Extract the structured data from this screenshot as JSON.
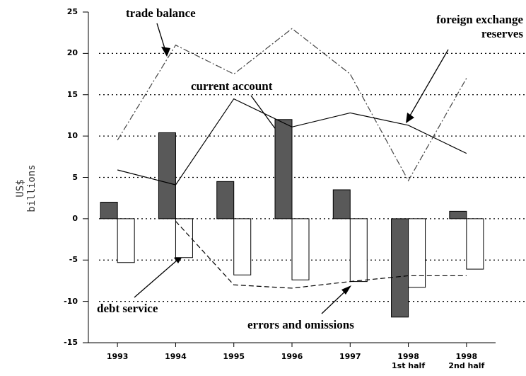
{
  "chart_data": {
    "type": "bar",
    "ylabel": "US$ billions",
    "categories": [
      "1993",
      "1994",
      "1995",
      "1996",
      "1997",
      "1998\n1st half",
      "1998\n2nd half"
    ],
    "ylim": [
      -15,
      25
    ],
    "yticks": [
      -15,
      -10,
      -5,
      0,
      5,
      10,
      15,
      20,
      25
    ],
    "grid": true,
    "series": [
      {
        "name": "current account",
        "type": "bar",
        "color": "#595959",
        "values": [
          2.0,
          10.4,
          4.5,
          12.0,
          3.5,
          -11.9,
          0.9
        ]
      },
      {
        "name": "debt service",
        "type": "bar",
        "color": "#ffffff",
        "values": [
          -5.3,
          -4.7,
          -6.8,
          -7.4,
          -7.6,
          -8.3,
          -6.1
        ]
      },
      {
        "name": "trade balance",
        "type": "line",
        "dash": "dashdot",
        "color": "#444444",
        "values": [
          9.5,
          21.0,
          17.5,
          23.0,
          17.5,
          4.6,
          17.0
        ]
      },
      {
        "name": "foreign exchange\nreserves",
        "type": "line",
        "dash": "solid",
        "color": "#000000",
        "values": [
          5.9,
          4.1,
          14.5,
          11.1,
          12.8,
          11.3,
          7.9
        ]
      },
      {
        "name": "errors and omissions",
        "type": "line",
        "dash": "dashed",
        "color": "#000000",
        "values": [
          null,
          -0.3,
          -8.0,
          -8.4,
          -7.6,
          -6.9,
          -6.9
        ]
      }
    ]
  }
}
